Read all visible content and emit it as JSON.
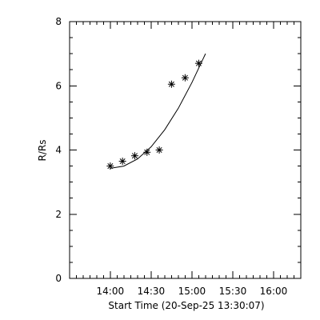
{
  "chart_data": {
    "type": "scatter",
    "xlabel": "Start Time (20-Sep-25 13:30:07)",
    "ylabel": "R/Rs",
    "x_tick_labels": [
      "14:00",
      "14:30",
      "15:00",
      "15:30",
      "16:00"
    ],
    "x_tick_values": [
      "14:00",
      "14:30",
      "15:00",
      "15:30",
      "16:00"
    ],
    "xlim": [
      "13:30:07",
      "16:20"
    ],
    "ylim": [
      0,
      8
    ],
    "y_tick_labels": [
      "0",
      "2",
      "4",
      "6",
      "8"
    ],
    "y_tick_values": [
      0,
      2,
      4,
      6,
      8
    ],
    "grid": false,
    "series": [
      {
        "marker": "asterisk",
        "color": "#000000",
        "points": [
          {
            "x": "14:00",
            "y": 3.5
          },
          {
            "x": "14:09",
            "y": 3.65
          },
          {
            "x": "14:18",
            "y": 3.82
          },
          {
            "x": "14:27",
            "y": 3.93
          },
          {
            "x": "14:36",
            "y": 4.0
          },
          {
            "x": "14:45",
            "y": 6.05
          },
          {
            "x": "14:55",
            "y": 6.25
          },
          {
            "x": "15:05",
            "y": 6.7
          }
        ]
      }
    ],
    "fit": {
      "style": "line",
      "color": "#000000",
      "points": [
        {
          "x": "14:00",
          "y": 3.43
        },
        {
          "x": "14:10",
          "y": 3.5
        },
        {
          "x": "14:20",
          "y": 3.72
        },
        {
          "x": "14:30",
          "y": 4.1
        },
        {
          "x": "14:40",
          "y": 4.63
        },
        {
          "x": "14:50",
          "y": 5.3
        },
        {
          "x": "15:00",
          "y": 6.1
        },
        {
          "x": "15:10",
          "y": 7.0
        }
      ]
    }
  }
}
